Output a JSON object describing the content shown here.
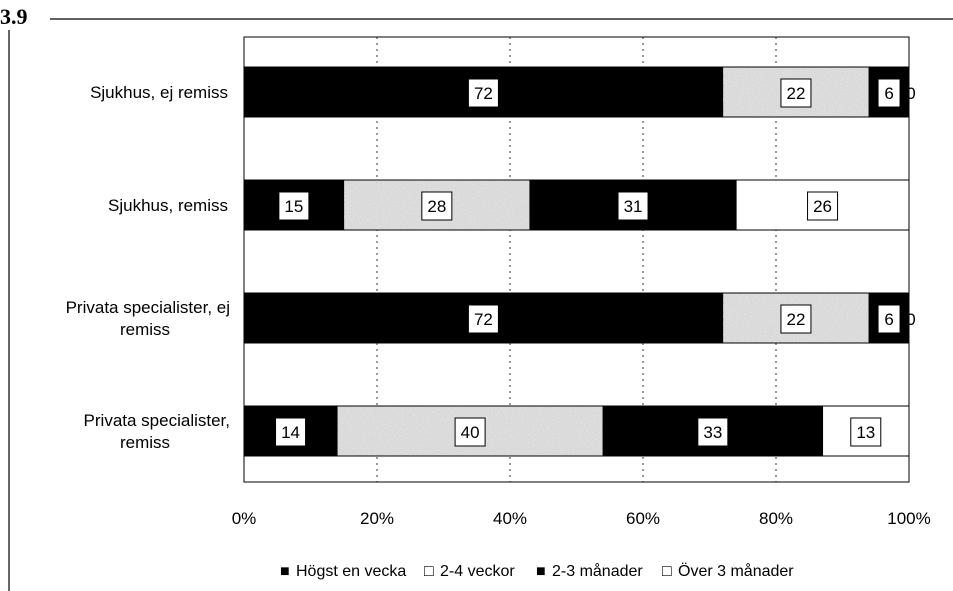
{
  "fragment_text": "3.9",
  "chart_data": {
    "type": "bar",
    "orientation": "horizontal",
    "stacked": "percent",
    "categories": [
      [
        "Sjukhus, ej remiss"
      ],
      [
        "Sjukhus, remiss"
      ],
      [
        "Privata specialister, ej",
        "remiss"
      ],
      [
        "Privata specialister,",
        "remiss"
      ]
    ],
    "series": [
      {
        "name": "Högst en vecka",
        "values": [
          72,
          15,
          72,
          14
        ],
        "color": "#000000",
        "label_color": "#000000"
      },
      {
        "name": "2-4 veckor",
        "values": [
          22,
          28,
          22,
          40
        ],
        "color": "#d0d0d0",
        "textured": true
      },
      {
        "name": "2-3 månader",
        "values": [
          6,
          31,
          6,
          33
        ],
        "color": "#000000"
      },
      {
        "name": "Över 3 månader",
        "values": [
          0,
          26,
          0,
          13
        ],
        "color": "#ffffff"
      }
    ],
    "xlim": [
      0,
      100
    ],
    "xticks": [
      "0%",
      "20%",
      "40%",
      "60%",
      "80%",
      "100%"
    ],
    "grid": "vertical dashed",
    "legend_position": "bottom",
    "legend_symbols": [
      "■",
      "□",
      "■",
      "□"
    ]
  }
}
